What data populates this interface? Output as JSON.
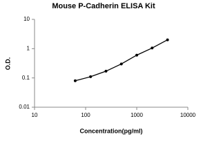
{
  "chart_data": {
    "type": "line",
    "title": "Mouse P-Cadherin ELISA Kit",
    "x_label": "Concentration(pg/ml)",
    "y_label": "O.D.",
    "x": [
      62.5,
      125,
      250,
      500,
      1000,
      2000,
      4000
    ],
    "series": [
      {
        "color": "#000000",
        "values": [
          0.08,
          0.11,
          0.17,
          0.3,
          0.6,
          1.05,
          2.0
        ]
      }
    ],
    "xlim": [
      10,
      10000
    ],
    "xticks": [
      10,
      100,
      1000,
      10000
    ],
    "ylim": [
      0.01,
      10
    ],
    "yticks": [
      0.01,
      0.1,
      1,
      10
    ],
    "xscale": "log",
    "yscale": "log",
    "grid": false
  }
}
